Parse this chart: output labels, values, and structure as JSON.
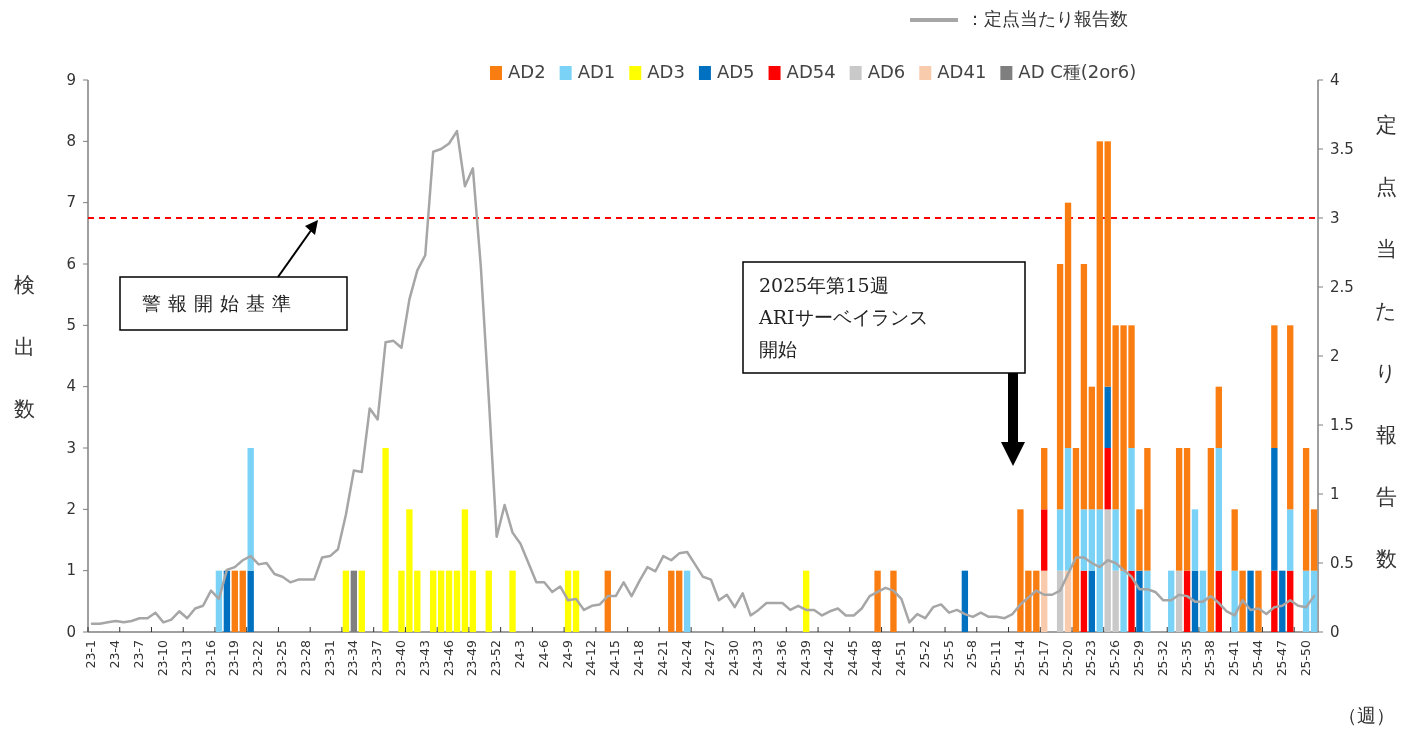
{
  "chart_data": {
    "type": "bar",
    "stacked": true,
    "xlabel": "（週）",
    "ylabel": "検出数",
    "y2label": "定点当たり報告数",
    "legend": "top",
    "categories": [
      "23-1",
      null,
      null,
      "23-4",
      null,
      null,
      "23-7",
      null,
      null,
      "23-10",
      null,
      null,
      "23-13",
      null,
      null,
      "23-16",
      null,
      null,
      "23-19",
      null,
      null,
      "23-22",
      null,
      null,
      "23-25",
      null,
      null,
      "23-28",
      null,
      null,
      "23-31",
      null,
      null,
      "23-34",
      null,
      null,
      "23-37",
      null,
      null,
      "23-40",
      null,
      null,
      "23-43",
      null,
      null,
      "23-46",
      null,
      null,
      "23-49",
      null,
      null,
      "23-52",
      null,
      null,
      "24-3",
      null,
      null,
      "24-6",
      null,
      null,
      "24-9",
      null,
      null,
      "24-12",
      null,
      null,
      "24-15",
      null,
      null,
      "24-18",
      null,
      null,
      "24-21",
      null,
      null,
      "24-24",
      null,
      null,
      "24-27",
      null,
      null,
      "24-30",
      null,
      null,
      "24-33",
      null,
      null,
      "24-36",
      null,
      null,
      "24-39",
      null,
      null,
      "24-42",
      null,
      null,
      "24-45",
      null,
      null,
      "24-48",
      null,
      null,
      "24-51",
      null,
      null,
      "25-2",
      null,
      null,
      "25-5",
      null,
      null,
      "25-8",
      null,
      null,
      "25-11",
      null,
      null,
      "25-14",
      null,
      null,
      "25-17",
      null,
      null,
      "25-20",
      null,
      null,
      "25-23",
      null,
      null,
      "25-26",
      null,
      null,
      "25-29",
      null,
      null,
      "25-32",
      null,
      null,
      "25-35",
      null,
      null,
      "25-38",
      null,
      null,
      "25-41",
      null,
      null,
      "25-44",
      null,
      null,
      "25-47",
      null,
      null,
      "25-50",
      null
    ],
    "ylim": [
      0,
      9
    ],
    "yticks": [
      0,
      1,
      2,
      3,
      4,
      5,
      6,
      7,
      8,
      9
    ],
    "y2lim": [
      0,
      4
    ],
    "y2ticks": [
      0,
      0.5,
      1,
      1.5,
      2,
      2.5,
      3,
      3.5,
      4
    ],
    "ref_lines": [
      {
        "axis": "y2",
        "value": 3,
        "color": "#ff0000",
        "line_style": "dashed"
      }
    ],
    "annotations": [
      "警報開始基準",
      "2025年第15週",
      "ARIサーベイランス",
      "開始"
    ],
    "series": [
      {
        "name": "AD C種(2or6)",
        "color": "#7f7f7f",
        "values": [
          null,
          null,
          null,
          null,
          null,
          null,
          null,
          null,
          null,
          null,
          null,
          null,
          null,
          null,
          null,
          null,
          null,
          null,
          null,
          null,
          null,
          null,
          null,
          null,
          null,
          null,
          null,
          null,
          null,
          null,
          null,
          null,
          null,
          1,
          null,
          null,
          null,
          null,
          null,
          null,
          null,
          null,
          null,
          null,
          null,
          null,
          null,
          null,
          null,
          null,
          null,
          null,
          null,
          null,
          null,
          null,
          null,
          null,
          null,
          null,
          null,
          null,
          null,
          null,
          null,
          null,
          null,
          null,
          null,
          null,
          null,
          null,
          null,
          null,
          null,
          null,
          null,
          null,
          null,
          null,
          null,
          null,
          null,
          null,
          null,
          null,
          null,
          null,
          null,
          null,
          null,
          null,
          null,
          null,
          null,
          null,
          null,
          null,
          null,
          null,
          null,
          null,
          null,
          null,
          null,
          null,
          null,
          null,
          null,
          null,
          null,
          null,
          null,
          null,
          null,
          null,
          null,
          null,
          null,
          null,
          null,
          null,
          null,
          null,
          null,
          null,
          null,
          null,
          null,
          null,
          null,
          null,
          null,
          null,
          null,
          null,
          null,
          null,
          null,
          null,
          null,
          null,
          null,
          null,
          null,
          null,
          null,
          null,
          null,
          null,
          null,
          null,
          null,
          null,
          null
        ]
      },
      {
        "name": "AD41",
        "color": "#f8cbad",
        "values": [
          null,
          null,
          null,
          null,
          null,
          null,
          null,
          null,
          null,
          null,
          null,
          null,
          null,
          null,
          null,
          null,
          null,
          null,
          null,
          null,
          null,
          null,
          null,
          null,
          null,
          null,
          null,
          null,
          null,
          null,
          null,
          null,
          null,
          null,
          null,
          null,
          null,
          null,
          null,
          null,
          null,
          null,
          null,
          null,
          null,
          null,
          null,
          null,
          null,
          null,
          null,
          null,
          null,
          null,
          null,
          null,
          null,
          null,
          null,
          null,
          null,
          null,
          null,
          null,
          null,
          null,
          null,
          null,
          null,
          null,
          null,
          null,
          null,
          null,
          null,
          null,
          null,
          null,
          null,
          null,
          null,
          null,
          null,
          null,
          null,
          null,
          null,
          null,
          null,
          null,
          null,
          null,
          null,
          null,
          null,
          null,
          null,
          null,
          null,
          null,
          null,
          null,
          null,
          null,
          null,
          null,
          null,
          null,
          null,
          null,
          null,
          null,
          null,
          null,
          null,
          null,
          null,
          null,
          null,
          null,
          1,
          null,
          null,
          1,
          null,
          null,
          null,
          null,
          null,
          null,
          null,
          null,
          null,
          null,
          null,
          null,
          null,
          null,
          null,
          null,
          null,
          null,
          null,
          null,
          null,
          null,
          null,
          null,
          null,
          null,
          null,
          null,
          null,
          null,
          null
        ]
      },
      {
        "name": "AD6",
        "color": "#c9c9c9",
        "values": [
          null,
          null,
          null,
          null,
          null,
          null,
          null,
          null,
          null,
          null,
          null,
          null,
          null,
          null,
          null,
          null,
          null,
          null,
          null,
          null,
          null,
          null,
          null,
          null,
          null,
          null,
          null,
          null,
          null,
          null,
          null,
          null,
          null,
          null,
          null,
          null,
          null,
          null,
          null,
          null,
          null,
          null,
          null,
          null,
          null,
          null,
          null,
          null,
          null,
          null,
          null,
          null,
          null,
          null,
          null,
          null,
          null,
          null,
          null,
          null,
          null,
          null,
          null,
          null,
          null,
          null,
          null,
          null,
          null,
          null,
          null,
          null,
          null,
          null,
          null,
          null,
          null,
          null,
          null,
          null,
          null,
          null,
          null,
          null,
          null,
          null,
          null,
          null,
          null,
          null,
          null,
          null,
          null,
          null,
          null,
          null,
          null,
          null,
          null,
          null,
          null,
          null,
          null,
          null,
          null,
          null,
          null,
          null,
          null,
          null,
          null,
          null,
          null,
          null,
          null,
          null,
          null,
          null,
          null,
          null,
          null,
          null,
          1,
          null,
          null,
          null,
          null,
          null,
          2,
          1,
          null,
          null,
          null,
          null,
          null,
          null,
          null,
          1,
          null,
          null,
          null,
          null,
          null,
          null,
          null,
          null,
          null,
          null,
          null,
          null,
          null,
          null,
          null,
          null,
          null
        ]
      },
      {
        "name": "AD54",
        "color": "#ff0000",
        "values": [
          null,
          null,
          null,
          null,
          null,
          null,
          null,
          null,
          null,
          null,
          null,
          null,
          null,
          null,
          null,
          null,
          null,
          null,
          null,
          null,
          null,
          null,
          null,
          null,
          null,
          null,
          null,
          null,
          null,
          null,
          null,
          null,
          null,
          null,
          null,
          null,
          null,
          null,
          null,
          null,
          null,
          null,
          null,
          null,
          null,
          null,
          null,
          null,
          null,
          null,
          null,
          null,
          null,
          null,
          null,
          null,
          null,
          null,
          null,
          null,
          null,
          null,
          null,
          null,
          null,
          null,
          null,
          null,
          null,
          null,
          null,
          null,
          null,
          null,
          null,
          null,
          null,
          null,
          null,
          null,
          null,
          null,
          null,
          null,
          null,
          null,
          null,
          null,
          null,
          null,
          null,
          null,
          null,
          null,
          null,
          null,
          null,
          null,
          null,
          null,
          null,
          null,
          null,
          null,
          null,
          null,
          null,
          null,
          null,
          null,
          null,
          null,
          null,
          null,
          null,
          null,
          null,
          null,
          null,
          null,
          1,
          null,
          null,
          null,
          null,
          1,
          null,
          null,
          1,
          null,
          null,
          1,
          null,
          null,
          null,
          null,
          null,
          null,
          1,
          null,
          null,
          null,
          1,
          null,
          null,
          null,
          null,
          null,
          null,
          1,
          null,
          1,
          null,
          null,
          null
        ]
      },
      {
        "name": "AD5",
        "color": "#0070c0",
        "values": [
          null,
          null,
          null,
          null,
          null,
          null,
          null,
          null,
          null,
          null,
          null,
          null,
          null,
          null,
          null,
          null,
          null,
          1,
          null,
          null,
          1,
          null,
          null,
          null,
          null,
          null,
          null,
          null,
          null,
          null,
          null,
          null,
          null,
          null,
          null,
          null,
          null,
          null,
          null,
          null,
          null,
          null,
          null,
          null,
          null,
          null,
          null,
          null,
          null,
          null,
          null,
          null,
          null,
          null,
          null,
          null,
          null,
          null,
          null,
          null,
          null,
          null,
          null,
          null,
          null,
          null,
          null,
          null,
          null,
          null,
          null,
          null,
          null,
          null,
          null,
          null,
          null,
          null,
          null,
          null,
          null,
          null,
          null,
          null,
          null,
          null,
          null,
          null,
          null,
          null,
          null,
          null,
          null,
          null,
          null,
          null,
          null,
          null,
          null,
          null,
          null,
          null,
          null,
          null,
          null,
          null,
          null,
          null,
          null,
          null,
          1,
          null,
          null,
          null,
          null,
          null,
          null,
          null,
          null,
          null,
          null,
          null,
          null,
          null,
          null,
          null,
          1,
          null,
          1,
          null,
          null,
          null,
          1,
          null,
          null,
          null,
          null,
          null,
          null,
          1,
          null,
          null,
          null,
          null,
          null,
          null,
          1,
          null,
          null,
          2,
          1,
          null,
          null,
          null,
          null
        ]
      },
      {
        "name": "AD3",
        "color": "#ffff00",
        "values": [
          null,
          null,
          null,
          null,
          null,
          null,
          null,
          null,
          null,
          null,
          null,
          null,
          null,
          null,
          null,
          null,
          null,
          null,
          null,
          null,
          null,
          null,
          null,
          null,
          null,
          null,
          null,
          null,
          null,
          null,
          null,
          null,
          1,
          null,
          1,
          null,
          null,
          3,
          null,
          1,
          2,
          1,
          null,
          1,
          1,
          1,
          1,
          2,
          1,
          null,
          1,
          null,
          null,
          1,
          null,
          null,
          null,
          null,
          null,
          null,
          1,
          1,
          null,
          null,
          null,
          null,
          null,
          null,
          null,
          null,
          null,
          null,
          null,
          null,
          null,
          null,
          null,
          null,
          null,
          null,
          null,
          null,
          null,
          null,
          null,
          null,
          null,
          null,
          null,
          null,
          1,
          null,
          null,
          null,
          null,
          null,
          null,
          null,
          null,
          null,
          null,
          null,
          null,
          null,
          null,
          null,
          null,
          null,
          null,
          null,
          null,
          null,
          null,
          null,
          null,
          null,
          null,
          null,
          null,
          null,
          null,
          null,
          null,
          null,
          null,
          null,
          null,
          null,
          null,
          null,
          null,
          null,
          null,
          null,
          null,
          null,
          null,
          null,
          null,
          null,
          null,
          null,
          null,
          null,
          null,
          null,
          null,
          null,
          null,
          null,
          null,
          null,
          null,
          null,
          null
        ]
      },
      {
        "name": "AD1",
        "color": "#7ad3f7",
        "values": [
          null,
          null,
          null,
          null,
          null,
          null,
          null,
          null,
          null,
          null,
          null,
          null,
          null,
          null,
          null,
          null,
          1,
          null,
          null,
          null,
          2,
          null,
          null,
          null,
          null,
          null,
          null,
          null,
          null,
          null,
          null,
          null,
          null,
          null,
          null,
          null,
          null,
          null,
          null,
          null,
          null,
          null,
          null,
          null,
          null,
          null,
          null,
          null,
          null,
          null,
          null,
          null,
          null,
          null,
          null,
          null,
          null,
          null,
          null,
          null,
          null,
          null,
          null,
          null,
          null,
          null,
          null,
          null,
          null,
          null,
          null,
          null,
          null,
          null,
          null,
          1,
          null,
          null,
          null,
          null,
          null,
          null,
          null,
          null,
          null,
          null,
          null,
          null,
          null,
          null,
          null,
          null,
          null,
          null,
          null,
          null,
          null,
          null,
          null,
          null,
          null,
          null,
          null,
          null,
          null,
          null,
          null,
          null,
          null,
          null,
          null,
          null,
          null,
          null,
          null,
          null,
          null,
          null,
          null,
          null,
          null,
          null,
          1,
          2,
          null,
          1,
          1,
          2,
          null,
          1,
          1,
          2,
          null,
          1,
          null,
          null,
          1,
          null,
          null,
          1,
          1,
          null,
          2,
          null,
          1,
          null,
          null,
          null,
          null,
          null,
          null,
          1,
          null,
          1,
          1
        ]
      },
      {
        "name": "AD2",
        "color": "#fa7d12",
        "values": [
          null,
          null,
          null,
          null,
          null,
          null,
          null,
          null,
          null,
          null,
          null,
          null,
          null,
          null,
          null,
          null,
          null,
          null,
          1,
          1,
          null,
          null,
          null,
          null,
          null,
          null,
          null,
          null,
          null,
          null,
          null,
          null,
          null,
          null,
          null,
          null,
          null,
          null,
          null,
          null,
          null,
          null,
          null,
          null,
          null,
          null,
          null,
          null,
          null,
          null,
          null,
          null,
          null,
          null,
          null,
          null,
          null,
          null,
          null,
          null,
          null,
          null,
          null,
          null,
          null,
          1,
          null,
          null,
          null,
          null,
          null,
          null,
          null,
          1,
          1,
          null,
          null,
          null,
          null,
          null,
          null,
          null,
          null,
          null,
          null,
          null,
          null,
          null,
          null,
          null,
          null,
          null,
          null,
          null,
          null,
          null,
          null,
          null,
          null,
          1,
          null,
          1,
          null,
          null,
          null,
          null,
          null,
          null,
          null,
          null,
          null,
          null,
          null,
          null,
          null,
          null,
          null,
          2,
          1,
          1,
          1,
          null,
          4,
          4,
          3,
          4,
          2,
          6,
          4,
          3,
          4,
          2,
          1,
          2,
          null,
          null,
          null,
          2,
          2,
          null,
          null,
          3,
          1,
          null,
          1,
          1,
          null,
          1,
          null,
          2,
          null,
          3,
          null,
          2,
          1
        ]
      },
      {
        "name": "：定点当たり報告数",
        "type": "line",
        "axis": "y2",
        "color": "#a6a6a6",
        "values": [
          0.06,
          0.06,
          0.07,
          0.08,
          0.07,
          0.08,
          0.1,
          0.1,
          0.14,
          0.07,
          0.09,
          0.15,
          0.1,
          0.17,
          0.19,
          0.3,
          0.24,
          0.45,
          0.47,
          0.52,
          0.55,
          0.49,
          0.5,
          0.42,
          0.4,
          0.36,
          0.38,
          0.38,
          0.38,
          0.54,
          0.55,
          0.6,
          0.85,
          1.17,
          1.16,
          1.62,
          1.54,
          2.1,
          2.11,
          2.06,
          2.41,
          2.62,
          2.73,
          3.48,
          3.5,
          3.54,
          3.63,
          3.23,
          3.36,
          2.65,
          1.7,
          0.69,
          0.92,
          0.72,
          0.64,
          0.5,
          0.36,
          0.36,
          0.29,
          0.33,
          0.23,
          0.24,
          0.16,
          0.19,
          0.2,
          0.26,
          0.26,
          0.36,
          0.26,
          0.37,
          0.47,
          0.44,
          0.55,
          0.52,
          0.57,
          0.58,
          0.49,
          0.4,
          0.38,
          0.23,
          0.27,
          0.18,
          0.28,
          0.12,
          0.16,
          0.21,
          0.21,
          0.21,
          0.16,
          0.19,
          0.16,
          0.16,
          0.12,
          0.15,
          0.17,
          0.12,
          0.12,
          0.17,
          0.26,
          0.29,
          0.32,
          0.3,
          0.24,
          0.07,
          0.13,
          0.1,
          0.18,
          0.2,
          0.14,
          0.16,
          0.13,
          0.11,
          0.14,
          0.11,
          0.11,
          0.1,
          0.13,
          0.2,
          0.25,
          0.3,
          0.27,
          0.27,
          0.3,
          0.42,
          0.54,
          0.54,
          0.5,
          0.47,
          0.52,
          0.5,
          0.45,
          0.4,
          0.31,
          0.31,
          0.29,
          0.23,
          0.23,
          0.27,
          0.26,
          0.22,
          0.22,
          0.26,
          0.21,
          0.15,
          0.12,
          0.23,
          0.16,
          0.17,
          0.13,
          0.18,
          0.19,
          0.23,
          0.19,
          0.18,
          0.26
        ]
      }
    ]
  }
}
